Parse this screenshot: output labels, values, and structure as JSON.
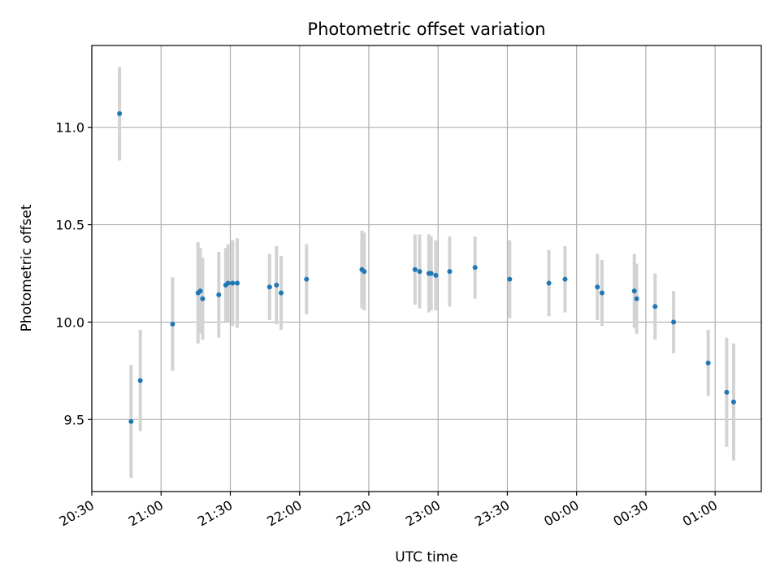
{
  "chart_data": {
    "type": "scatter",
    "title": "Photometric offset variation",
    "xlabel": "UTC time",
    "ylabel": "Photometric offset",
    "grid": true,
    "xlim": [
      "2000-01-01T20:30:00",
      "2000-01-02T01:20:00"
    ],
    "ylim": [
      9.13,
      11.42
    ],
    "x_ticks": [
      "20:30",
      "21:00",
      "21:30",
      "22:00",
      "22:30",
      "23:00",
      "23:30",
      "00:00",
      "00:30",
      "01:00"
    ],
    "x_tick_values": [
      "2000-01-01T20:30",
      "2000-01-01T21:00",
      "2000-01-01T21:30",
      "2000-01-01T22:00",
      "2000-01-01T22:30",
      "2000-01-01T23:00",
      "2000-01-01T23:30",
      "2000-01-02T00:00",
      "2000-01-02T00:30",
      "2000-01-02T01:00"
    ],
    "y_ticks": [
      "9.5",
      "10.0",
      "10.5",
      "11.0"
    ],
    "y_tick_values": [
      9.5,
      10.0,
      10.5,
      11.0
    ],
    "points_color": "#1f77b4",
    "errorbar_color": "#d3d3d3",
    "points": [
      {
        "x": "2000-01-01T20:42",
        "y": 11.07,
        "err": 0.24
      },
      {
        "x": "2000-01-01T20:47",
        "y": 9.49,
        "err": 0.29
      },
      {
        "x": "2000-01-01T20:51",
        "y": 9.7,
        "err": 0.26
      },
      {
        "x": "2000-01-01T21:05",
        "y": 9.99,
        "err": 0.24
      },
      {
        "x": "2000-01-01T21:16",
        "y": 10.15,
        "err": 0.26
      },
      {
        "x": "2000-01-01T21:17",
        "y": 10.16,
        "err": 0.22
      },
      {
        "x": "2000-01-01T21:18",
        "y": 10.12,
        "err": 0.21
      },
      {
        "x": "2000-01-01T21:25",
        "y": 10.14,
        "err": 0.22
      },
      {
        "x": "2000-01-01T21:28",
        "y": 10.19,
        "err": 0.19
      },
      {
        "x": "2000-01-01T21:29",
        "y": 10.2,
        "err": 0.2
      },
      {
        "x": "2000-01-01T21:31",
        "y": 10.2,
        "err": 0.22
      },
      {
        "x": "2000-01-01T21:33",
        "y": 10.2,
        "err": 0.23
      },
      {
        "x": "2000-01-01T21:47",
        "y": 10.18,
        "err": 0.17
      },
      {
        "x": "2000-01-01T21:50",
        "y": 10.19,
        "err": 0.2
      },
      {
        "x": "2000-01-01T21:52",
        "y": 10.15,
        "err": 0.19
      },
      {
        "x": "2000-01-01T22:03",
        "y": 10.22,
        "err": 0.18
      },
      {
        "x": "2000-01-01T22:27",
        "y": 10.27,
        "err": 0.2
      },
      {
        "x": "2000-01-01T22:28",
        "y": 10.26,
        "err": 0.2
      },
      {
        "x": "2000-01-01T22:50",
        "y": 10.27,
        "err": 0.18
      },
      {
        "x": "2000-01-01T22:52",
        "y": 10.26,
        "err": 0.19
      },
      {
        "x": "2000-01-01T22:56",
        "y": 10.25,
        "err": 0.2
      },
      {
        "x": "2000-01-01T22:57",
        "y": 10.25,
        "err": 0.19
      },
      {
        "x": "2000-01-01T22:59",
        "y": 10.24,
        "err": 0.18
      },
      {
        "x": "2000-01-01T23:05",
        "y": 10.26,
        "err": 0.18
      },
      {
        "x": "2000-01-01T23:16",
        "y": 10.28,
        "err": 0.16
      },
      {
        "x": "2000-01-01T23:31",
        "y": 10.22,
        "err": 0.2
      },
      {
        "x": "2000-01-01T23:48",
        "y": 10.2,
        "err": 0.17
      },
      {
        "x": "2000-01-01T23:55",
        "y": 10.22,
        "err": 0.17
      },
      {
        "x": "2000-01-02T00:09",
        "y": 10.18,
        "err": 0.17
      },
      {
        "x": "2000-01-02T00:11",
        "y": 10.15,
        "err": 0.17
      },
      {
        "x": "2000-01-02T00:25",
        "y": 10.16,
        "err": 0.19
      },
      {
        "x": "2000-01-02T00:26",
        "y": 10.12,
        "err": 0.18
      },
      {
        "x": "2000-01-02T00:34",
        "y": 10.08,
        "err": 0.17
      },
      {
        "x": "2000-01-02T00:42",
        "y": 10.0,
        "err": 0.16
      },
      {
        "x": "2000-01-02T00:57",
        "y": 9.79,
        "err": 0.17
      },
      {
        "x": "2000-01-02T01:05",
        "y": 9.64,
        "err": 0.28
      },
      {
        "x": "2000-01-02T01:08",
        "y": 9.59,
        "err": 0.3
      }
    ]
  }
}
